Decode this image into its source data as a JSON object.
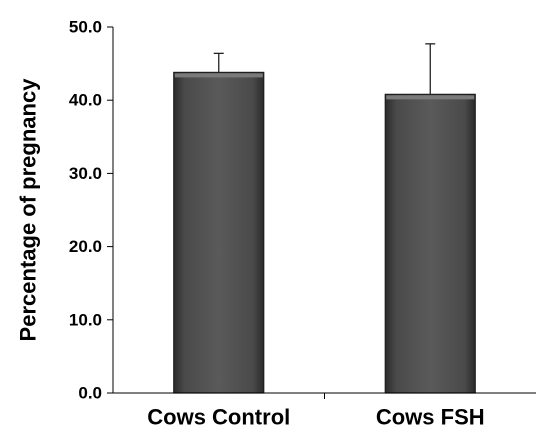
{
  "chart_data": {
    "type": "bar",
    "categories": [
      "Cows Control",
      "Cows FSH"
    ],
    "values": [
      43.8,
      40.8
    ],
    "error_plus": [
      2.6,
      6.9
    ],
    "title": "",
    "xlabel": "",
    "ylabel": "Percentage of pregnancy",
    "ylim": [
      0,
      50
    ],
    "yticks": [
      "0.0",
      "10.0",
      "20.0",
      "30.0",
      "40.0",
      "50.0"
    ],
    "grid": false,
    "bar_color": "#555555"
  }
}
